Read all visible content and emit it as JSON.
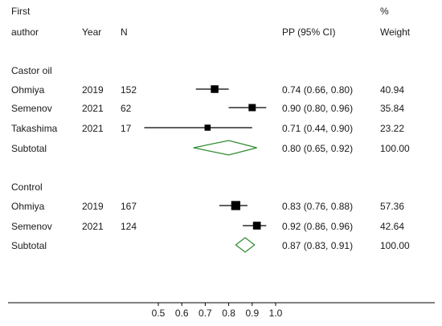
{
  "header": {
    "col_author_line1": "First",
    "col_author_line2": "author",
    "col_year": "Year",
    "col_n": "N",
    "col_effect": "PP (95% CI)",
    "col_weight_line1": "%",
    "col_weight_line2": "Weight"
  },
  "chart_data": {
    "type": "forest",
    "measure": "PP (95% CI)",
    "xlim": [
      0.5,
      1.0
    ],
    "ticks": [
      "0.5",
      "0.6",
      "0.7",
      "0.8",
      "0.9",
      "1.0"
    ],
    "colors": {
      "marker": "#000000",
      "diamond": "#2e8b2e",
      "axis": "#000000"
    },
    "groups": [
      {
        "label": "Castor oil",
        "studies": [
          {
            "author": "Ohmiya",
            "year": "2019",
            "n": "152",
            "est": 0.74,
            "lo": 0.66,
            "hi": 0.8,
            "ci_text": "0.74 (0.66, 0.80)",
            "weight": "40.94"
          },
          {
            "author": "Semenov",
            "year": "2021",
            "n": "62",
            "est": 0.9,
            "lo": 0.8,
            "hi": 0.96,
            "ci_text": "0.90 (0.80, 0.96)",
            "weight": "35.84"
          },
          {
            "author": "Takashima",
            "year": "2021",
            "n": "17",
            "est": 0.71,
            "lo": 0.44,
            "hi": 0.9,
            "ci_text": "0.71 (0.44, 0.90)",
            "weight": "23.22"
          }
        ],
        "subtotal": {
          "label": "Subtotal",
          "est": 0.8,
          "lo": 0.65,
          "hi": 0.92,
          "ci_text": "0.80 (0.65, 0.92)",
          "weight": "100.00"
        }
      },
      {
        "label": "Control",
        "studies": [
          {
            "author": "Ohmiya",
            "year": "2019",
            "n": "167",
            "est": 0.83,
            "lo": 0.76,
            "hi": 0.88,
            "ci_text": "0.83 (0.76, 0.88)",
            "weight": "57.36"
          },
          {
            "author": "Semenov",
            "year": "2021",
            "n": "124",
            "est": 0.92,
            "lo": 0.86,
            "hi": 0.96,
            "ci_text": "0.92 (0.86, 0.96)",
            "weight": "42.64"
          }
        ],
        "subtotal": {
          "label": "Subtotal",
          "est": 0.87,
          "lo": 0.83,
          "hi": 0.91,
          "ci_text": "0.87 (0.83, 0.91)",
          "weight": "100.00"
        }
      }
    ]
  }
}
